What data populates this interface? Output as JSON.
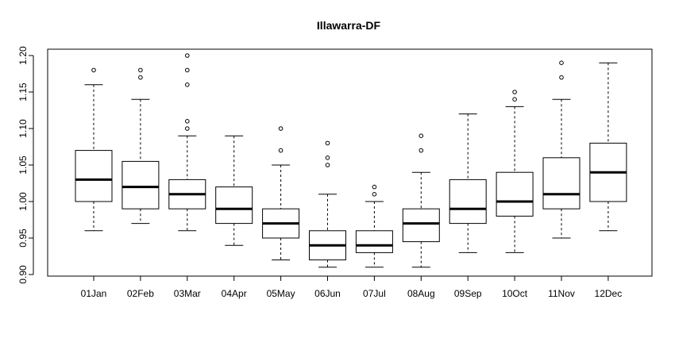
{
  "chart_data": {
    "type": "boxplot",
    "title": "Illawarra-DF",
    "xlabel": "",
    "ylabel": "",
    "ylim": [
      0.9,
      1.2
    ],
    "yticks": [
      "0.90",
      "0.95",
      "1.00",
      "1.05",
      "1.10",
      "1.15",
      "1.20"
    ],
    "grid": false,
    "categories": [
      "01Jan",
      "02Feb",
      "03Mar",
      "04Apr",
      "05May",
      "06Jun",
      "07Jul",
      "08Aug",
      "09Sep",
      "10Oct",
      "11Nov",
      "12Dec"
    ],
    "boxes": [
      {
        "whisker_low": 0.96,
        "q1": 1.0,
        "median": 1.03,
        "q3": 1.07,
        "whisker_high": 1.16,
        "outliers": [
          1.18
        ]
      },
      {
        "whisker_low": 0.97,
        "q1": 0.99,
        "median": 1.02,
        "q3": 1.055,
        "whisker_high": 1.14,
        "outliers": [
          1.17,
          1.18
        ]
      },
      {
        "whisker_low": 0.96,
        "q1": 0.99,
        "median": 1.01,
        "q3": 1.03,
        "whisker_high": 1.09,
        "outliers": [
          1.1,
          1.11,
          1.16,
          1.18,
          1.2
        ]
      },
      {
        "whisker_low": 0.94,
        "q1": 0.97,
        "median": 0.99,
        "q3": 1.02,
        "whisker_high": 1.09,
        "outliers": []
      },
      {
        "whisker_low": 0.92,
        "q1": 0.95,
        "median": 0.97,
        "q3": 0.99,
        "whisker_high": 1.05,
        "outliers": [
          1.07,
          1.1
        ]
      },
      {
        "whisker_low": 0.91,
        "q1": 0.92,
        "median": 0.94,
        "q3": 0.96,
        "whisker_high": 1.01,
        "outliers": [
          1.05,
          1.06,
          1.08
        ]
      },
      {
        "whisker_low": 0.91,
        "q1": 0.93,
        "median": 0.94,
        "q3": 0.96,
        "whisker_high": 1.0,
        "outliers": [
          1.01,
          1.02
        ]
      },
      {
        "whisker_low": 0.91,
        "q1": 0.945,
        "median": 0.97,
        "q3": 0.99,
        "whisker_high": 1.04,
        "outliers": [
          1.07,
          1.09
        ]
      },
      {
        "whisker_low": 0.93,
        "q1": 0.97,
        "median": 0.99,
        "q3": 1.03,
        "whisker_high": 1.12,
        "outliers": []
      },
      {
        "whisker_low": 0.93,
        "q1": 0.98,
        "median": 1.0,
        "q3": 1.04,
        "whisker_high": 1.13,
        "outliers": [
          1.14,
          1.15
        ]
      },
      {
        "whisker_low": 0.95,
        "q1": 0.99,
        "median": 1.01,
        "q3": 1.06,
        "whisker_high": 1.14,
        "outliers": [
          1.17,
          1.19
        ]
      },
      {
        "whisker_low": 0.96,
        "q1": 1.0,
        "median": 1.04,
        "q3": 1.08,
        "whisker_high": 1.19,
        "outliers": []
      }
    ],
    "colors": {
      "box_fill": "#ffffff",
      "line": "#000000"
    }
  }
}
